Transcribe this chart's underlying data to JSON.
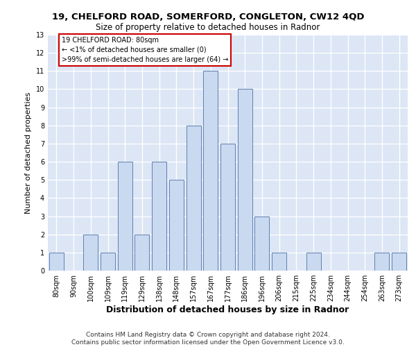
{
  "title_line1": "19, CHELFORD ROAD, SOMERFORD, CONGLETON, CW12 4QD",
  "title_line2": "Size of property relative to detached houses in Radnor",
  "xlabel": "Distribution of detached houses by size in Radnor",
  "ylabel": "Number of detached properties",
  "categories": [
    "80sqm",
    "90sqm",
    "100sqm",
    "109sqm",
    "119sqm",
    "129sqm",
    "138sqm",
    "148sqm",
    "157sqm",
    "167sqm",
    "177sqm",
    "186sqm",
    "196sqm",
    "206sqm",
    "215sqm",
    "225sqm",
    "234sqm",
    "244sqm",
    "254sqm",
    "263sqm",
    "273sqm"
  ],
  "values": [
    1,
    0,
    2,
    1,
    6,
    2,
    6,
    5,
    8,
    11,
    7,
    10,
    3,
    1,
    0,
    1,
    0,
    0,
    0,
    1,
    1
  ],
  "bar_color": "#c9d9f0",
  "bar_edge_color": "#6080b0",
  "annotation_text": "19 CHELFORD ROAD: 80sqm\n← <1% of detached houses are smaller (0)\n>99% of semi-detached houses are larger (64) →",
  "annotation_box_color": "#ffffff",
  "annotation_box_edge_color": "#cc0000",
  "footer_line1": "Contains HM Land Registry data © Crown copyright and database right 2024.",
  "footer_line2": "Contains public sector information licensed under the Open Government Licence v3.0.",
  "ylim": [
    0,
    13
  ],
  "yticks": [
    0,
    1,
    2,
    3,
    4,
    5,
    6,
    7,
    8,
    9,
    10,
    11,
    12,
    13
  ],
  "background_color": "#dce6f5",
  "grid_color": "#ffffff",
  "title_fontsize": 9.5,
  "subtitle_fontsize": 8.5,
  "ylabel_fontsize": 8,
  "xlabel_fontsize": 9,
  "tick_fontsize": 7,
  "annotation_fontsize": 7,
  "footer_fontsize": 6.5
}
